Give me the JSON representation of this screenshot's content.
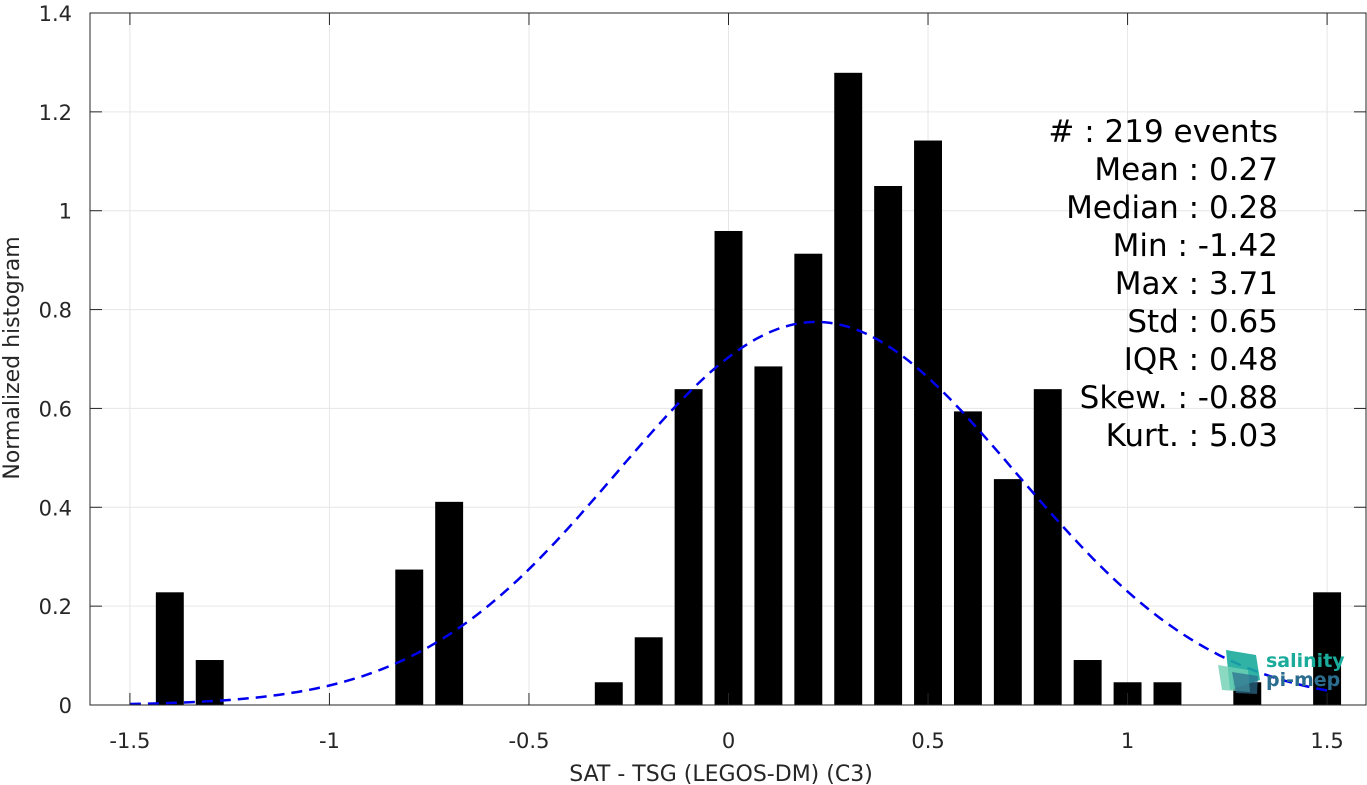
{
  "chart_data": {
    "type": "bar",
    "xlabel": "SAT - TSG (LEGOS-DM) (C3)",
    "ylabel": "Normalized histogram",
    "xlim": [
      -1.6,
      1.6
    ],
    "ylim": [
      0,
      1.4
    ],
    "grid": true,
    "bar_width": 0.07,
    "bar_color": "#000000",
    "x_ticks": [
      {
        "value": -1.5,
        "label": "-1.5"
      },
      {
        "value": -1.0,
        "label": "-1"
      },
      {
        "value": -0.5,
        "label": "-0.5"
      },
      {
        "value": 0.0,
        "label": "0"
      },
      {
        "value": 0.5,
        "label": "0.5"
      },
      {
        "value": 1.0,
        "label": "1"
      },
      {
        "value": 1.5,
        "label": "1.5"
      }
    ],
    "y_ticks": [
      {
        "value": 0,
        "label": "0"
      },
      {
        "value": 0.2,
        "label": "0.2"
      },
      {
        "value": 0.4,
        "label": "0.4"
      },
      {
        "value": 0.6,
        "label": "0.6"
      },
      {
        "value": 0.8,
        "label": "0.8"
      },
      {
        "value": 1.0,
        "label": "1"
      },
      {
        "value": 1.2,
        "label": "1.2"
      },
      {
        "value": 1.4,
        "label": "1.4"
      }
    ],
    "bars": [
      {
        "x": -1.4,
        "y": 0.228
      },
      {
        "x": -1.3,
        "y": 0.091
      },
      {
        "x": -0.8,
        "y": 0.274
      },
      {
        "x": -0.7,
        "y": 0.411
      },
      {
        "x": -0.3,
        "y": 0.046
      },
      {
        "x": -0.2,
        "y": 0.137
      },
      {
        "x": -0.1,
        "y": 0.639
      },
      {
        "x": 0.0,
        "y": 0.959
      },
      {
        "x": 0.1,
        "y": 0.685
      },
      {
        "x": 0.2,
        "y": 0.913
      },
      {
        "x": 0.3,
        "y": 1.279
      },
      {
        "x": 0.4,
        "y": 1.05
      },
      {
        "x": 0.5,
        "y": 1.142
      },
      {
        "x": 0.6,
        "y": 0.594
      },
      {
        "x": 0.7,
        "y": 0.457
      },
      {
        "x": 0.8,
        "y": 0.639
      },
      {
        "x": 0.9,
        "y": 0.091
      },
      {
        "x": 1.0,
        "y": 0.046
      },
      {
        "x": 1.1,
        "y": 0.046
      },
      {
        "x": 1.3,
        "y": 0.046
      },
      {
        "x": 1.5,
        "y": 0.228
      }
    ],
    "fit_curve": {
      "type": "gaussian",
      "mean": 0.22,
      "std": 0.5,
      "x_range": [
        -1.5,
        1.5
      ],
      "color": "#0000ee",
      "style": "dashed"
    },
    "stats": [
      {
        "label": "#  ",
        "value": ": 219 events"
      },
      {
        "label": "Mean ",
        "value": ": 0.27"
      },
      {
        "label": "Median ",
        "value": ": 0.28"
      },
      {
        "label": "Min ",
        "value": ": -1.42"
      },
      {
        "label": "Max ",
        "value": ": 3.71"
      },
      {
        "label": "Std ",
        "value": ": 0.65"
      },
      {
        "label": "IQR ",
        "value": ": 0.48"
      },
      {
        "label": "Skew. ",
        "value": ": -0.88"
      },
      {
        "label": "Kurt. ",
        "value": ": 5.03"
      }
    ]
  },
  "logo": {
    "line1": "salinity",
    "line2": "pi-mep",
    "color_primary": "#1aab9b",
    "color_secondary": "#2b6d8e"
  }
}
